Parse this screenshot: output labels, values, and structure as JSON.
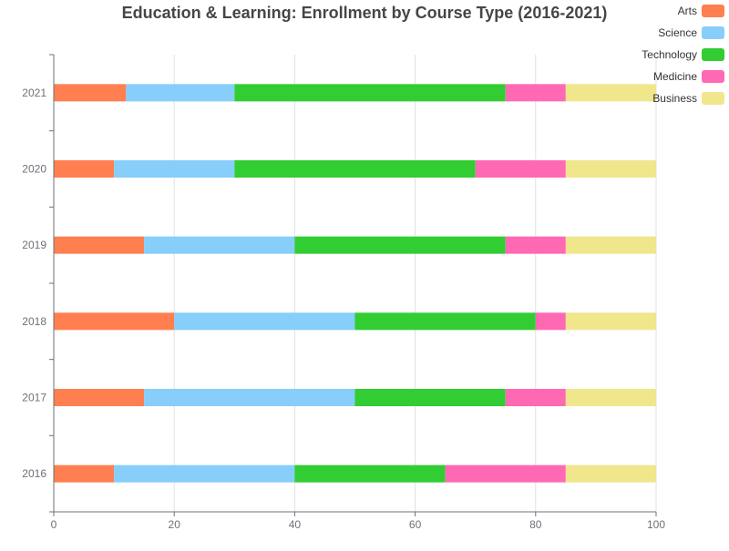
{
  "chart_data": {
    "type": "bar",
    "orientation": "horizontal",
    "stacked": true,
    "title": "Education & Learning: Enrollment by Course Type (2016-2021)",
    "categories": [
      "2016",
      "2017",
      "2018",
      "2019",
      "2020",
      "2021"
    ],
    "series": [
      {
        "name": "Arts",
        "color": "#ff7f50",
        "values": [
          10,
          15,
          20,
          15,
          10,
          12
        ]
      },
      {
        "name": "Science",
        "color": "#87cefa",
        "values": [
          30,
          35,
          30,
          25,
          20,
          18
        ]
      },
      {
        "name": "Technology",
        "color": "#32cd32",
        "values": [
          25,
          25,
          30,
          35,
          40,
          45
        ]
      },
      {
        "name": "Medicine",
        "color": "#ff69b4",
        "values": [
          20,
          10,
          5,
          10,
          15,
          10
        ]
      },
      {
        "name": "Business",
        "color": "#f0e68c",
        "values": [
          15,
          15,
          15,
          15,
          15,
          15
        ]
      }
    ],
    "xlim": [
      0,
      100
    ],
    "xticks": [
      "0",
      "20",
      "40",
      "60",
      "80",
      "100"
    ],
    "xlabel": "",
    "ylabel": "",
    "grid": "vertical",
    "legend_position": "top-right"
  }
}
